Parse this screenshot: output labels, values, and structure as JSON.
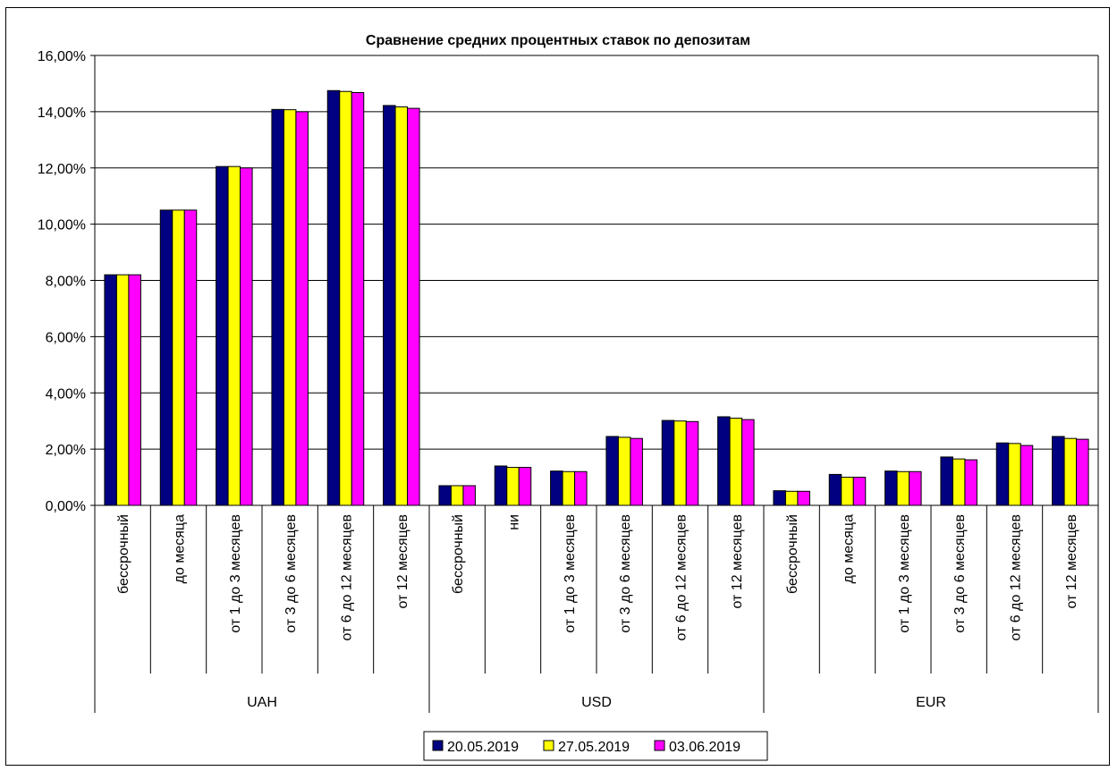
{
  "chart_data": {
    "type": "bar",
    "title": "Сравнение средних процентных ставок по депозитам",
    "xlabel": "",
    "ylabel": "",
    "ylim": [
      0,
      16
    ],
    "ytick_step": 2,
    "ytick_labels": [
      "0,00%",
      "2,00%",
      "4,00%",
      "6,00%",
      "8,00%",
      "10,00%",
      "12,00%",
      "14,00%",
      "16,00%"
    ],
    "grid": true,
    "legend_position": "bottom",
    "groups": [
      {
        "name": "UAH",
        "categories": [
          "бессрочный",
          "до месяца",
          "от 1 до 3 месяцев",
          "от 3 до 6 месяцев",
          "от 6 до 12 месяцев",
          "от 12 месяцев"
        ]
      },
      {
        "name": "USD",
        "categories": [
          "бессрочный",
          "ни",
          "от 1 до 3 месяцев",
          "от 3 до 6 месяцев",
          "от 6 до 12 месяцев",
          "от 12 месяцев"
        ]
      },
      {
        "name": "EUR",
        "categories": [
          "бессрочный",
          "до месяца",
          "от 1 до 3 месяцев",
          "от 3 до 6 месяцев",
          "от 6 до 12 месяцев",
          "от 12 месяцев"
        ]
      }
    ],
    "series": [
      {
        "name": "20.05.2019",
        "color": "#000080",
        "values": [
          8.2,
          10.5,
          12.05,
          14.08,
          14.75,
          14.22,
          0.7,
          1.4,
          1.22,
          2.45,
          3.02,
          3.15,
          0.52,
          1.1,
          1.22,
          1.72,
          2.22,
          2.45
        ]
      },
      {
        "name": "27.05.2019",
        "color": "#ffff00",
        "values": [
          8.2,
          10.5,
          12.05,
          14.07,
          14.72,
          14.17,
          0.7,
          1.35,
          1.2,
          2.42,
          3.0,
          3.1,
          0.5,
          1.0,
          1.2,
          1.65,
          2.2,
          2.38
        ]
      },
      {
        "name": "03.06.2019",
        "color": "#ff00ff",
        "values": [
          8.2,
          10.5,
          12.0,
          14.0,
          14.68,
          14.12,
          0.7,
          1.35,
          1.2,
          2.38,
          2.98,
          3.05,
          0.5,
          1.0,
          1.2,
          1.62,
          2.13,
          2.35
        ]
      }
    ]
  }
}
